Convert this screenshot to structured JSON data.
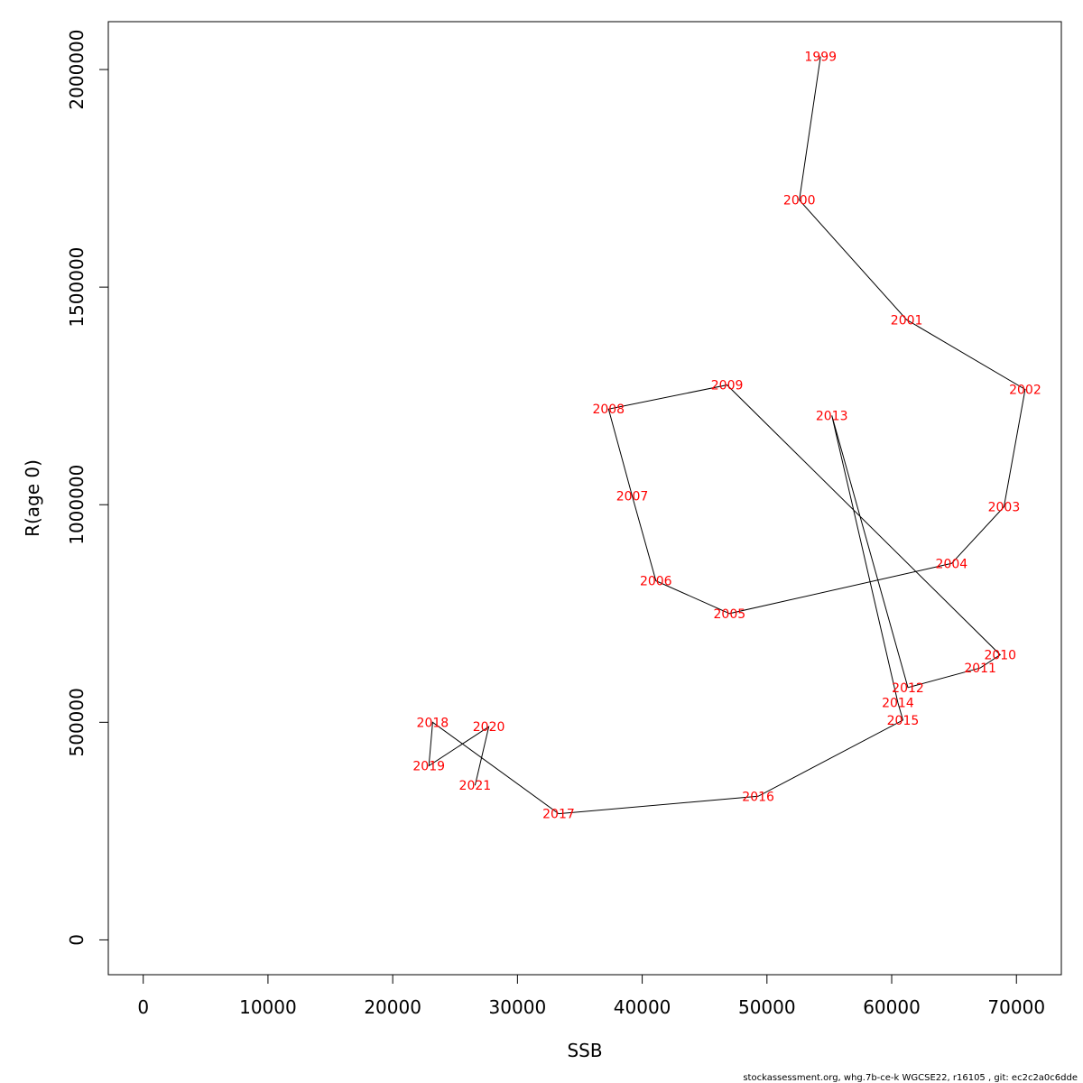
{
  "chart_data": {
    "type": "line",
    "xlabel": "SSB",
    "ylabel": "R(age 0)",
    "xlim": [
      -2800,
      73600
    ],
    "ylim": [
      -80000,
      2110000
    ],
    "x_ticks": [
      0,
      10000,
      20000,
      30000,
      40000,
      50000,
      60000,
      70000
    ],
    "x_tick_labels": [
      "0",
      "10000",
      "20000",
      "30000",
      "40000",
      "50000",
      "60000",
      "70000"
    ],
    "y_ticks": [
      0,
      500000,
      1000000,
      1500000,
      2000000
    ],
    "y_tick_labels": [
      "0",
      "500000",
      "1000000",
      "1500000",
      "2000000"
    ],
    "grid": false,
    "line_color": "#000000",
    "label_color": "#ff0000",
    "points": [
      {
        "year": "1999",
        "ssb": 54300,
        "r": 2030000
      },
      {
        "year": "2000",
        "ssb": 52600,
        "r": 1700000
      },
      {
        "year": "2001",
        "ssb": 61200,
        "r": 1425000
      },
      {
        "year": "2002",
        "ssb": 70700,
        "r": 1265000
      },
      {
        "year": "2003",
        "ssb": 69000,
        "r": 995000
      },
      {
        "year": "2004",
        "ssb": 64800,
        "r": 865000
      },
      {
        "year": "2005",
        "ssb": 47000,
        "r": 750000
      },
      {
        "year": "2006",
        "ssb": 41100,
        "r": 825000
      },
      {
        "year": "2007",
        "ssb": 39200,
        "r": 1020000
      },
      {
        "year": "2008",
        "ssb": 37300,
        "r": 1220000
      },
      {
        "year": "2009",
        "ssb": 46800,
        "r": 1275000
      },
      {
        "year": "2010",
        "ssb": 68700,
        "r": 655000
      },
      {
        "year": "2011",
        "ssb": 67100,
        "r": 625000
      },
      {
        "year": "2012",
        "ssb": 61300,
        "r": 580000
      },
      {
        "year": "2013",
        "ssb": 55200,
        "r": 1205000
      },
      {
        "year": "2014",
        "ssb": 60500,
        "r": 545000
      },
      {
        "year": "2015",
        "ssb": 60900,
        "r": 505000
      },
      {
        "year": "2016",
        "ssb": 49300,
        "r": 330000
      },
      {
        "year": "2017",
        "ssb": 33300,
        "r": 290000
      },
      {
        "year": "2018",
        "ssb": 23200,
        "r": 500000
      },
      {
        "year": "2019",
        "ssb": 22900,
        "r": 400000
      },
      {
        "year": "2020",
        "ssb": 27700,
        "r": 490000
      },
      {
        "year": "2021",
        "ssb": 26600,
        "r": 355000
      }
    ]
  },
  "footer": "stockassessment.org, whg.7b-ce-k  WGCSE22, r16105 , git: ec2c2a0c6dde"
}
